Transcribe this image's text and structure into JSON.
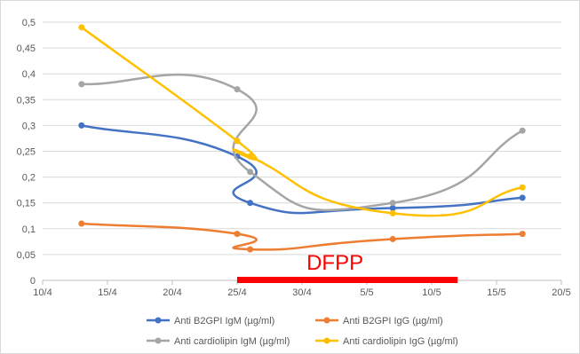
{
  "chart_data": {
    "type": "line",
    "title": "",
    "xlabel": "",
    "ylabel": "",
    "x_tick_labels": [
      "10/4",
      "15/4",
      "20/4",
      "25/4",
      "30/4",
      "5/5",
      "10/5",
      "15/5",
      "20/5"
    ],
    "y_tick_labels": [
      "0",
      "0,05",
      "0,1",
      "0,15",
      "0,2",
      "0,25",
      "0,3",
      "0,35",
      "0,4",
      "0,45",
      "0,5"
    ],
    "xlim": [
      "10/4",
      "20/5"
    ],
    "ylim": [
      0,
      0.5
    ],
    "grid": "horizontal",
    "legend_position": "bottom",
    "series": [
      {
        "name": "Anti B2GPI IgM (µg/ml)",
        "color": "#4472C4",
        "points": [
          {
            "x": "13/4",
            "y": 0.3
          },
          {
            "x": "25/4",
            "y": 0.24
          },
          {
            "x": "26/4",
            "y": 0.15
          },
          {
            "x": "7/5",
            "y": 0.14
          },
          {
            "x": "17/5",
            "y": 0.16
          }
        ]
      },
      {
        "name": "Anti B2GPI IgG (µg/ml)",
        "color": "#ED7D31",
        "points": [
          {
            "x": "13/4",
            "y": 0.11
          },
          {
            "x": "25/4",
            "y": 0.09
          },
          {
            "x": "26/4",
            "y": 0.06
          },
          {
            "x": "7/5",
            "y": 0.08
          },
          {
            "x": "17/5",
            "y": 0.09
          }
        ]
      },
      {
        "name": "Anti cardiolipin IgM (µg/ml)",
        "color": "#A5A5A5",
        "points": [
          {
            "x": "13/4",
            "y": 0.38
          },
          {
            "x": "25/4",
            "y": 0.37
          },
          {
            "x": "26/4",
            "y": 0.21
          },
          {
            "x": "7/5",
            "y": 0.15
          },
          {
            "x": "17/5",
            "y": 0.29
          }
        ]
      },
      {
        "name": "Anti cardiolipin IgG (µg/ml)",
        "color": "#FFC000",
        "points": [
          {
            "x": "13/4",
            "y": 0.49
          },
          {
            "x": "25/4",
            "y": 0.27
          },
          {
            "x": "26/4",
            "y": 0.24
          },
          {
            "x": "7/5",
            "y": 0.13
          },
          {
            "x": "17/5",
            "y": 0.18
          }
        ]
      }
    ],
    "annotations": [
      {
        "text": "DFPP",
        "color": "#FF0000",
        "x_start": "25/4",
        "x_end": "12/5"
      }
    ]
  }
}
